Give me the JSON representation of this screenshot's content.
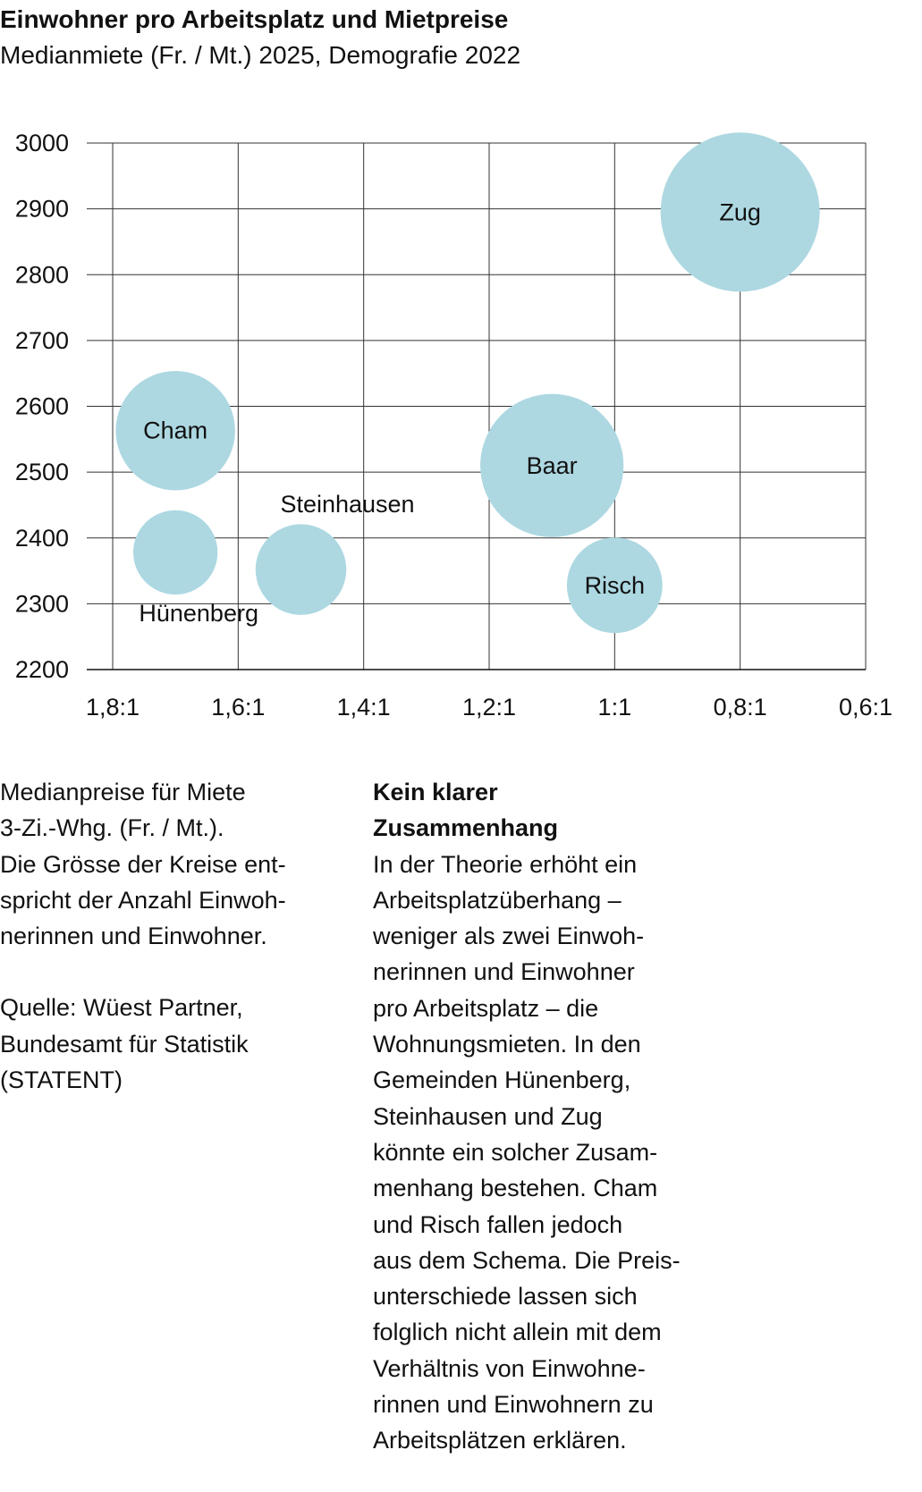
{
  "title": "Einwohner pro Arbeitsplatz und Mietpreise",
  "subtitle": "Medianmiete (Fr. / Mt.) 2025, Demografie 2022",
  "chart_data": {
    "type": "scatter",
    "variant": "bubble",
    "title": "Einwohner pro Arbeitsplatz und Mietpreise",
    "subtitle": "Medianmiete (Fr. / Mt.) 2025, Demografie 2022",
    "x_axis": {
      "ticks": [
        1.8,
        1.6,
        1.4,
        1.2,
        1.0,
        0.8,
        0.6
      ],
      "tick_labels": [
        "1,8:1",
        "1,6:1",
        "1,4:1",
        "1,2:1",
        "1:1",
        "0,8:1",
        "0,6:1"
      ],
      "range": [
        1.8,
        0.6
      ],
      "reversed": true
    },
    "y_axis": {
      "ticks": [
        3000,
        2900,
        2800,
        2700,
        2600,
        2500,
        2400,
        2300,
        2200
      ],
      "tick_labels": [
        "3000",
        "2900",
        "2800",
        "2700",
        "2600",
        "2500",
        "2400",
        "2300",
        "2200"
      ],
      "range": [
        2200,
        3000
      ]
    },
    "grid": true,
    "bubble_color": "#add8e2",
    "points": [
      {
        "label": "Zug",
        "x": 0.8,
        "y": 2895,
        "relative_size": 1.0
      },
      {
        "label": "Cham",
        "x": 1.7,
        "y": 2563,
        "relative_size": 0.75
      },
      {
        "label": "Hünenberg",
        "x": 1.7,
        "y": 2378,
        "relative_size": 0.53
      },
      {
        "label": "Steinhausen",
        "x": 1.5,
        "y": 2352,
        "relative_size": 0.57
      },
      {
        "label": "Baar",
        "x": 1.1,
        "y": 2510,
        "relative_size": 0.9
      },
      {
        "label": "Risch",
        "x": 1.0,
        "y": 2328,
        "relative_size": 0.6
      }
    ]
  },
  "note": {
    "lines": [
      "Medianpreise für Miete",
      "3-Zi.-Whg. (Fr. / Mt.).",
      "Die Grösse der Kreise ent-",
      "spricht der Anzahl Einwoh-",
      "nerinnen und Einwohner."
    ],
    "source_lines": [
      "Quelle: Wüest Partner,",
      "Bundesamt für Statistik",
      "(STATENT)"
    ]
  },
  "article": {
    "heading_lines": [
      "Kein klarer",
      "Zusammenhang"
    ],
    "lines": [
      "In der Theorie erhöht ein",
      "Arbeitsplatzüberhang –",
      "weniger als zwei Einwoh-",
      "nerinnen und Einwohner",
      "pro Arbeitsplatz – die",
      "Wohnungsmieten. In den",
      "Gemeinden Hünenberg,",
      "Steinhausen und Zug",
      "könnte ein solcher Zusam-",
      "menhang bestehen. Cham",
      "und Risch fallen jedoch",
      "aus dem Schema. Die Preis-",
      "unterschiede lassen sich",
      "folglich nicht allein mit dem",
      "Verhältnis von Einwohne-",
      "rinnen und Einwohnern zu",
      "Arbeitsplätzen erklären."
    ]
  }
}
